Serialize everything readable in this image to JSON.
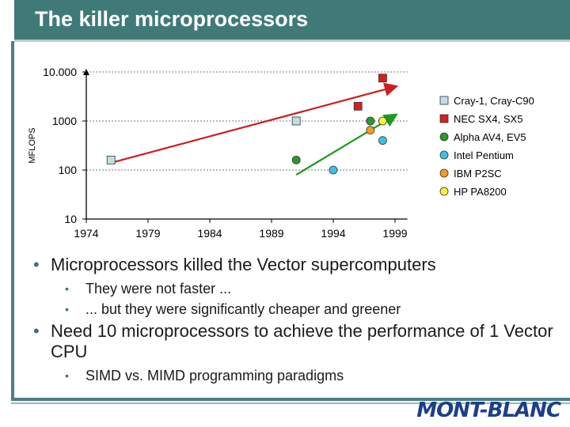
{
  "slide": {
    "title": "The killer microprocessors"
  },
  "chart_data": {
    "type": "scatter",
    "ylabel": "MFLOPS",
    "yscale": "log",
    "ylim": [
      10,
      10000
    ],
    "xlim": [
      1974,
      2000
    ],
    "yticks": [
      10,
      100,
      1000,
      10000
    ],
    "ytick_labels": [
      "10",
      "100",
      "1000",
      "10.000"
    ],
    "xticks": [
      1974,
      1979,
      1984,
      1989,
      1994,
      1999
    ],
    "xtick_labels": [
      "1974",
      "1979",
      "1984",
      "1989",
      "1994",
      "1999"
    ],
    "grid": "horizontal dashed",
    "legend_position": "right",
    "series": [
      {
        "name": "Cray-1, Cray-C90",
        "marker": "square",
        "color": "#bfe0e3",
        "points": [
          [
            1976,
            160
          ],
          [
            1991,
            1000
          ]
        ]
      },
      {
        "name": "NEC SX4, SX5",
        "marker": "square",
        "color": "#d32020",
        "points": [
          [
            1996,
            2000
          ],
          [
            1998,
            7500
          ]
        ]
      },
      {
        "name": "Alpha AV4, EV5",
        "marker": "circle",
        "color": "#2a9a2a",
        "points": [
          [
            1991,
            160
          ],
          [
            1997,
            1000
          ]
        ]
      },
      {
        "name": "Intel Pentium",
        "marker": "circle",
        "color": "#3ac3e8",
        "points": [
          [
            1994,
            100
          ],
          [
            1998,
            400
          ]
        ]
      },
      {
        "name": "IBM P2SC",
        "marker": "circle",
        "color": "#f59a23",
        "points": [
          [
            1997,
            650
          ]
        ]
      },
      {
        "name": "HP PA8200",
        "marker": "circle",
        "color": "#f5f23a",
        "points": [
          [
            1998,
            1000
          ]
        ]
      }
    ],
    "trend_lines": [
      {
        "color": "#cc1f1f",
        "from": [
          1976,
          140
        ],
        "to": [
          1999,
          5000
        ]
      },
      {
        "color": "#1e9a1e",
        "from": [
          1991,
          80
        ],
        "to": [
          1999,
          1300
        ]
      }
    ]
  },
  "bullets": [
    {
      "text": "Microprocessors killed the Vector supercomputers",
      "sub": [
        "They were not faster ...",
        "... but they were significantly cheaper and greener"
      ]
    },
    {
      "text": "Need 10 microprocessors to achieve the performance of 1 Vector CPU",
      "sub": [
        "SIMD vs. MIMD programming paradigms"
      ]
    }
  ],
  "logo": {
    "text": "MONT-BLANC"
  }
}
